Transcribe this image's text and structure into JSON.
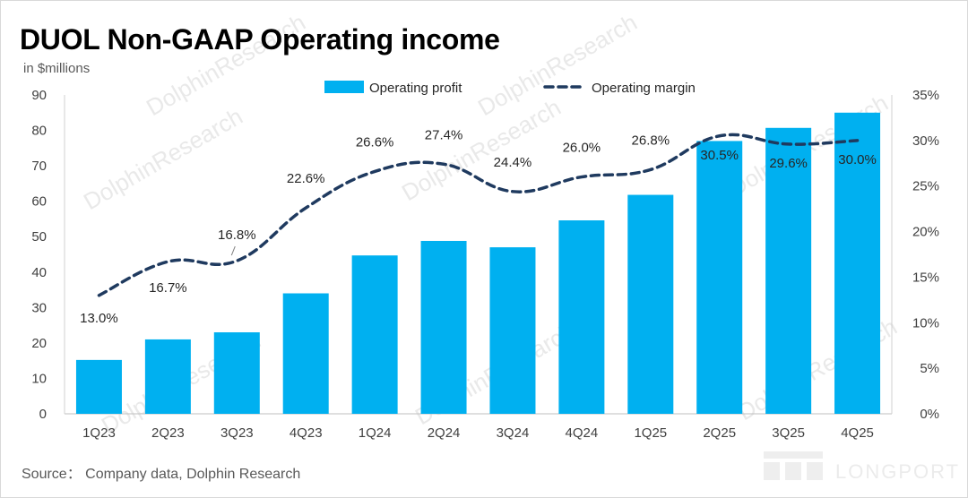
{
  "title": "DUOL Non-GAAP Operating income",
  "unit_label": "in $millions",
  "source": "Source： Company data, Dolphin Research",
  "watermark": "DolphinResearch",
  "logo_text": "LONGPORT",
  "chart_data": {
    "type": "bar+line",
    "title": "DUOL Non-GAAP Operating income",
    "categories": [
      "1Q23",
      "2Q23",
      "3Q23",
      "4Q23",
      "1Q24",
      "2Q24",
      "3Q24",
      "4Q24",
      "1Q25",
      "2Q25",
      "3Q25",
      "4Q25"
    ],
    "series": [
      {
        "name": "Operating profit",
        "kind": "bar",
        "axis": "left",
        "color": "#00B0F0",
        "values": [
          15.2,
          21,
          23,
          34,
          44.7,
          48.8,
          47,
          54.6,
          61.8,
          77,
          80.7,
          85
        ]
      },
      {
        "name": "Operating margin",
        "kind": "line",
        "style": "dashed",
        "axis": "right",
        "color": "#1F3A5F",
        "values": [
          13.0,
          16.7,
          16.8,
          22.6,
          26.6,
          27.4,
          24.4,
          26.0,
          26.8,
          30.5,
          29.6,
          30.0
        ],
        "labels": [
          "13.0%",
          "16.7%",
          "16.8%",
          "22.6%",
          "26.6%",
          "27.4%",
          "24.4%",
          "26.0%",
          "26.8%",
          "30.5%",
          "29.6%",
          "30.0%"
        ]
      }
    ],
    "y_left": {
      "min": 0,
      "max": 90,
      "step": 10,
      "ticks": [
        "0",
        "10",
        "20",
        "30",
        "40",
        "50",
        "60",
        "70",
        "80",
        "90"
      ]
    },
    "y_right": {
      "min": 0,
      "max": 35,
      "step": 5,
      "ticks": [
        "0%",
        "5%",
        "10%",
        "15%",
        "20%",
        "25%",
        "30%",
        "35%"
      ]
    },
    "legend": {
      "position": "top-center",
      "items": [
        "Operating profit",
        "Operating margin"
      ]
    },
    "grid": false
  }
}
